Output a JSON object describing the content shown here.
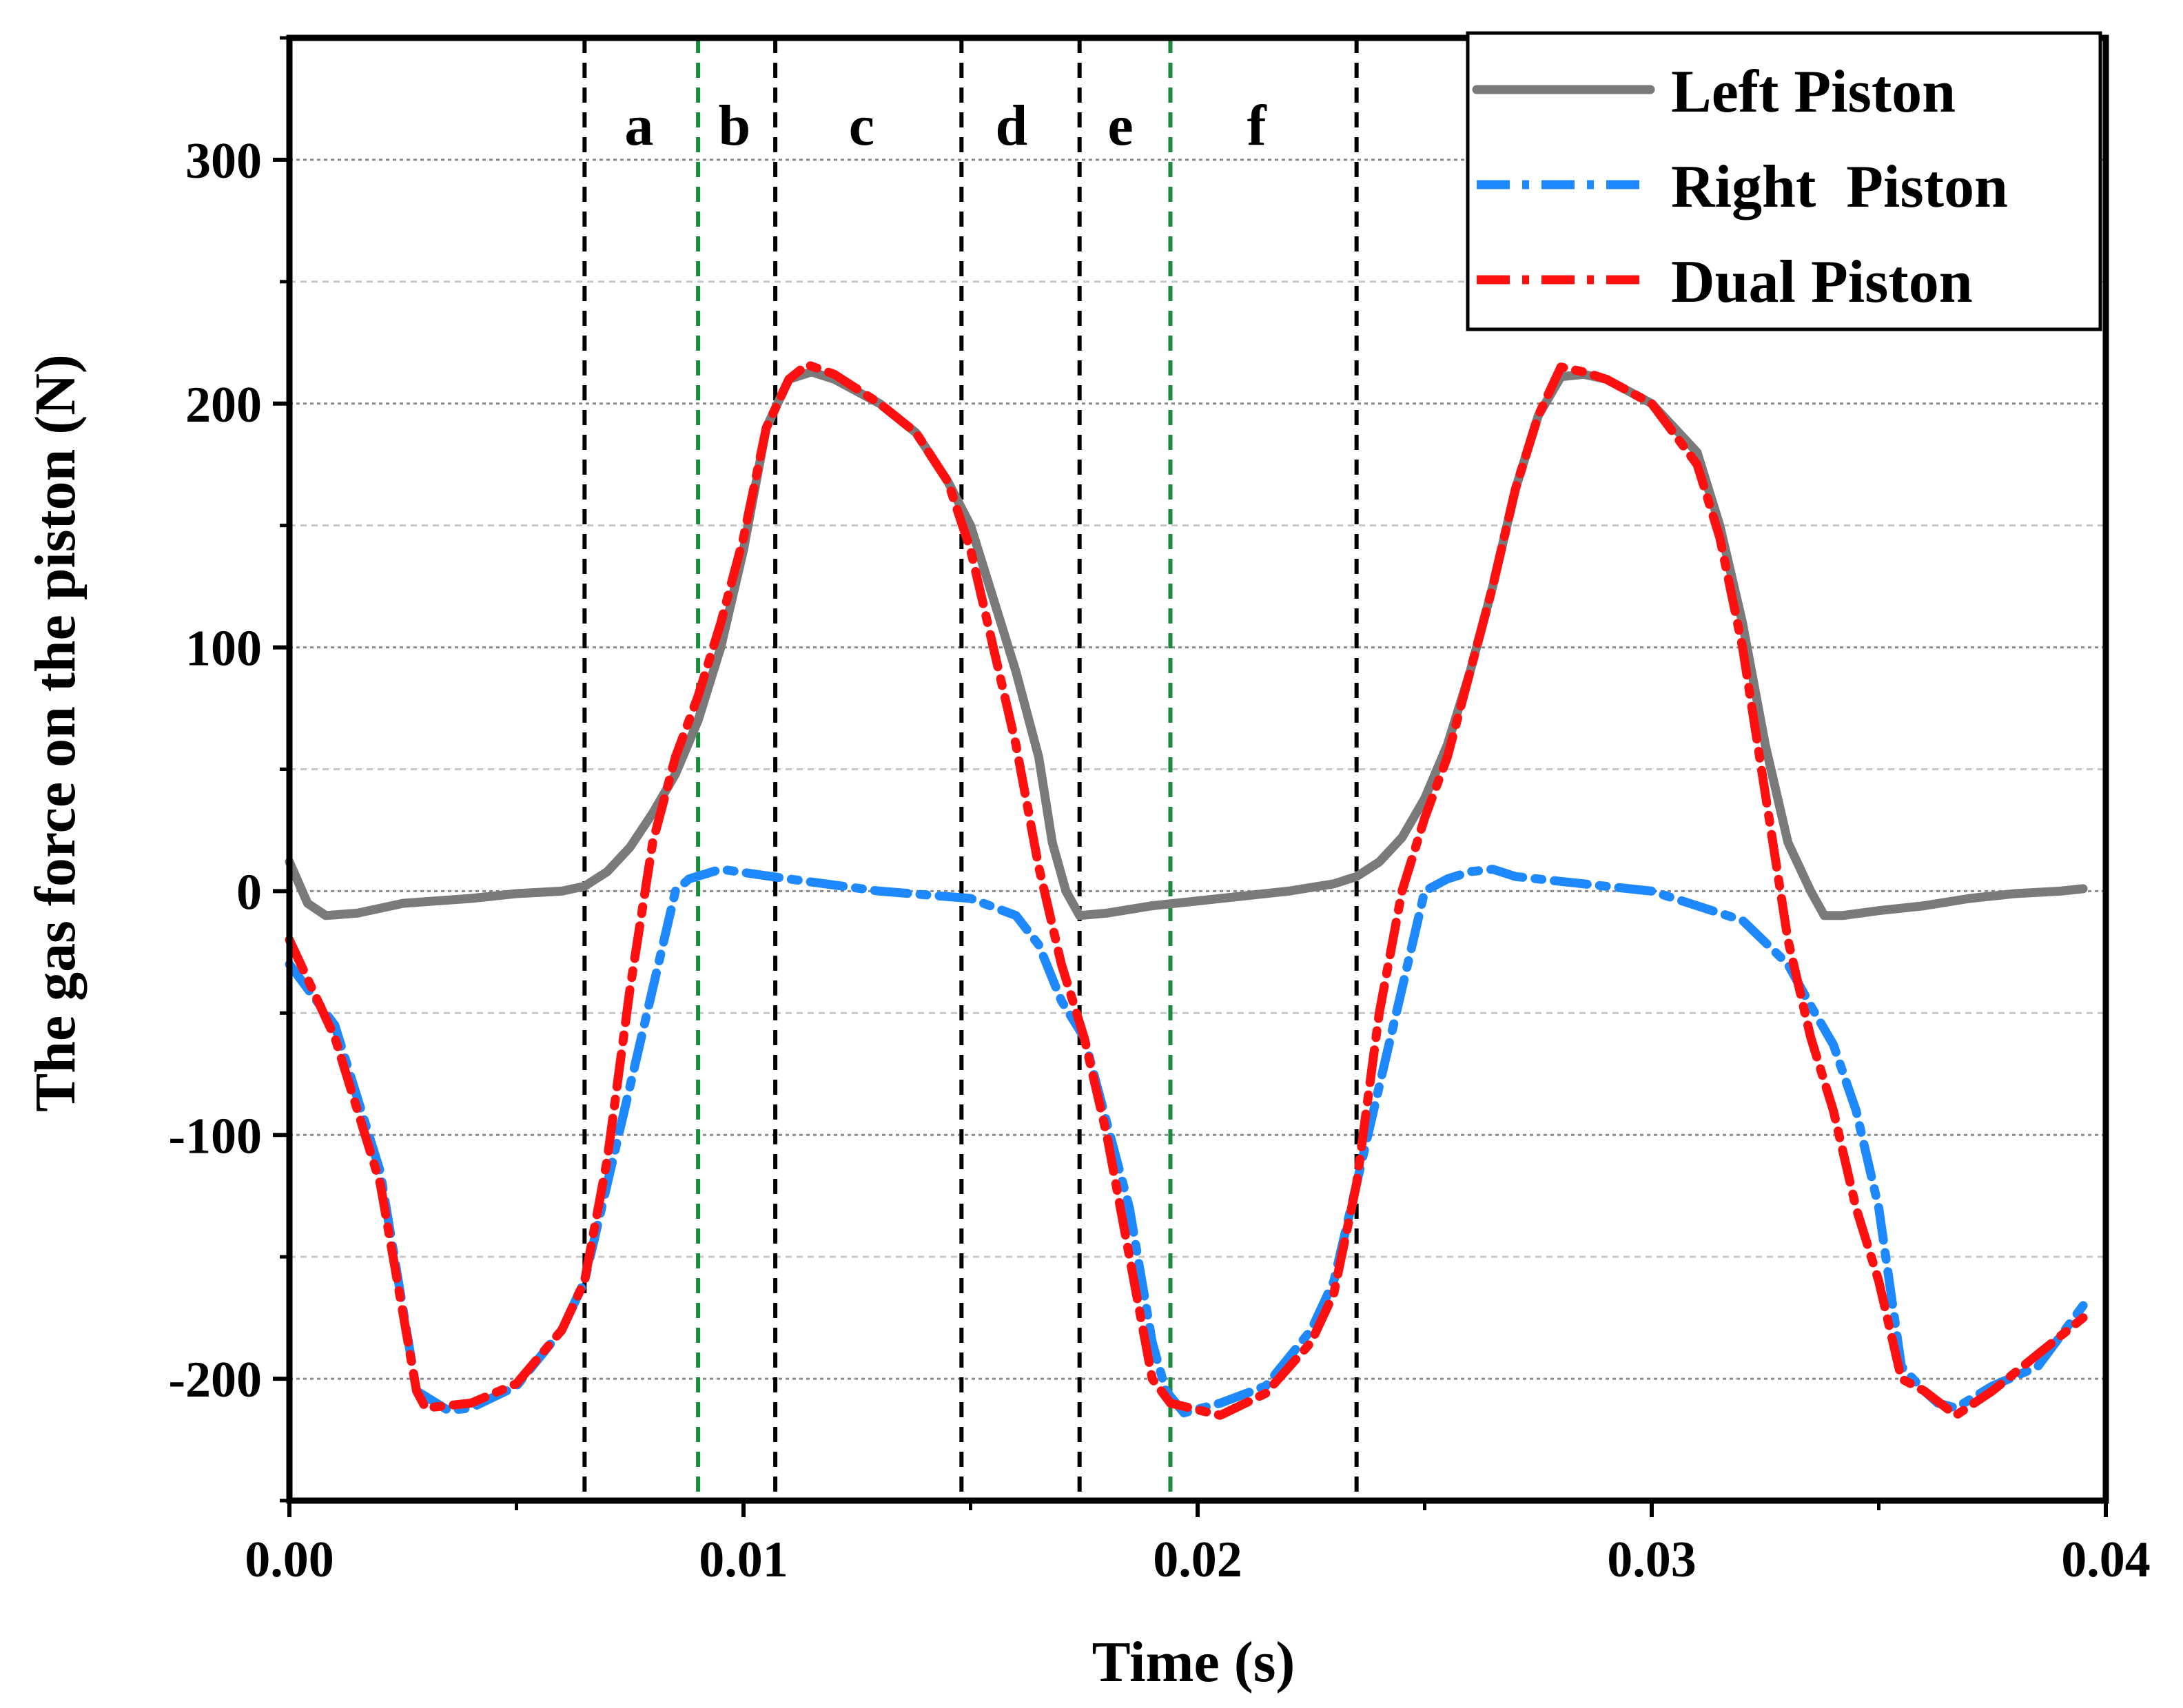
{
  "chart_data": {
    "type": "line",
    "title": "",
    "xlabel": "Time (s)",
    "ylabel": "The gas force on the piston (N)",
    "xlim": [
      0.0,
      0.04
    ],
    "ylim": [
      -250,
      350
    ],
    "grid": true,
    "xticks": [
      0.0,
      0.01,
      0.02,
      0.03,
      0.04
    ],
    "xtick_labels": [
      "0.00",
      "0.01",
      "0.02",
      "0.03",
      "0.04"
    ],
    "yticks": [
      -200,
      -100,
      0,
      100,
      200,
      300
    ],
    "ytick_labels": [
      "-200",
      "-100",
      "0",
      "100",
      "200",
      "300"
    ],
    "legend_position": "top-right",
    "colors": {
      "left": "#7a7a7a",
      "right": "#1e88ff",
      "dual": "#ff1010",
      "black_marker": "#000000",
      "green_marker": "#1a8a3c",
      "grid": "#8a8a8a"
    },
    "vertical_markers": [
      {
        "x": 0.0065,
        "color": "black"
      },
      {
        "x": 0.009,
        "color": "green"
      },
      {
        "x": 0.0107,
        "color": "black"
      },
      {
        "x": 0.0148,
        "color": "black"
      },
      {
        "x": 0.0174,
        "color": "black"
      },
      {
        "x": 0.0194,
        "color": "green"
      },
      {
        "x": 0.0235,
        "color": "black"
      }
    ],
    "region_labels": [
      {
        "label": "a",
        "x": 0.0077
      },
      {
        "label": "b",
        "x": 0.0098
      },
      {
        "label": "c",
        "x": 0.0126
      },
      {
        "label": "d",
        "x": 0.0159
      },
      {
        "label": "e",
        "x": 0.0183
      },
      {
        "label": "f",
        "x": 0.0213
      }
    ],
    "series": [
      {
        "name": "Left Piston",
        "style": "solid",
        "x": [
          0.0,
          0.0004,
          0.0008,
          0.0015,
          0.0025,
          0.004,
          0.005,
          0.006,
          0.0065,
          0.007,
          0.0075,
          0.008,
          0.0085,
          0.009,
          0.0095,
          0.01,
          0.0105,
          0.011,
          0.0115,
          0.012,
          0.013,
          0.0138,
          0.0145,
          0.015,
          0.0155,
          0.016,
          0.0165,
          0.0168,
          0.0171,
          0.0174,
          0.018,
          0.019,
          0.02,
          0.021,
          0.022,
          0.023,
          0.0235,
          0.024,
          0.0245,
          0.025,
          0.0255,
          0.026,
          0.0265,
          0.027,
          0.0275,
          0.028,
          0.0285,
          0.029,
          0.03,
          0.031,
          0.0315,
          0.032,
          0.0325,
          0.033,
          0.0335,
          0.0338,
          0.0342,
          0.035,
          0.036,
          0.037,
          0.038,
          0.039,
          0.0395
        ],
        "y": [
          12,
          -5,
          -10,
          -9,
          -5,
          -3,
          -1,
          0,
          2,
          8,
          18,
          32,
          48,
          70,
          100,
          140,
          190,
          210,
          213,
          210,
          200,
          188,
          168,
          150,
          120,
          90,
          55,
          20,
          0,
          -10,
          -9,
          -6,
          -4,
          -2,
          0,
          3,
          6,
          12,
          22,
          38,
          60,
          90,
          125,
          165,
          195,
          211,
          212,
          210,
          200,
          180,
          150,
          110,
          60,
          20,
          0,
          -10,
          -10,
          -8,
          -6,
          -3,
          -1,
          0,
          1
        ]
      },
      {
        "name": "Right  Piston",
        "style": "dashdot",
        "x": [
          0.0,
          0.001,
          0.002,
          0.0028,
          0.0035,
          0.004,
          0.005,
          0.006,
          0.0065,
          0.007,
          0.0075,
          0.008,
          0.0085,
          0.0088,
          0.0095,
          0.011,
          0.013,
          0.015,
          0.016,
          0.0165,
          0.017,
          0.0175,
          0.018,
          0.0185,
          0.019,
          0.0193,
          0.0197,
          0.0205,
          0.0215,
          0.0225,
          0.023,
          0.0235,
          0.024,
          0.0245,
          0.025,
          0.0255,
          0.026,
          0.0265,
          0.027,
          0.028,
          0.03,
          0.032,
          0.033,
          0.0335,
          0.034,
          0.0345,
          0.035,
          0.0355,
          0.036,
          0.0363,
          0.0367,
          0.0375,
          0.0385,
          0.0395
        ],
        "y": [
          -30,
          -55,
          -115,
          -205,
          -213,
          -212,
          -203,
          -180,
          -160,
          -120,
          -80,
          -40,
          0,
          5,
          9,
          5,
          0,
          -3,
          -10,
          -22,
          -45,
          -60,
          -95,
          -130,
          -185,
          -205,
          -214,
          -210,
          -203,
          -180,
          -160,
          -120,
          -80,
          -40,
          0,
          5,
          8,
          9,
          6,
          4,
          0,
          -12,
          -30,
          -47,
          -63,
          -90,
          -130,
          -195,
          -205,
          -210,
          -212,
          -203,
          -195,
          -170
        ]
      },
      {
        "name": "Dual Piston",
        "style": "dashdot",
        "x": [
          0.0,
          0.001,
          0.002,
          0.0028,
          0.003,
          0.004,
          0.005,
          0.006,
          0.0065,
          0.007,
          0.0075,
          0.008,
          0.0085,
          0.009,
          0.0095,
          0.01,
          0.0105,
          0.011,
          0.0114,
          0.012,
          0.013,
          0.0138,
          0.0145,
          0.015,
          0.0155,
          0.016,
          0.0165,
          0.017,
          0.0175,
          0.018,
          0.0185,
          0.019,
          0.0194,
          0.0205,
          0.0215,
          0.0225,
          0.023,
          0.0235,
          0.024,
          0.0245,
          0.025,
          0.0255,
          0.026,
          0.0265,
          0.027,
          0.0275,
          0.028,
          0.0285,
          0.029,
          0.03,
          0.031,
          0.0315,
          0.032,
          0.0325,
          0.033,
          0.0335,
          0.034,
          0.0345,
          0.035,
          0.0355,
          0.036,
          0.0367,
          0.0375,
          0.0385,
          0.0395
        ],
        "y": [
          -20,
          -60,
          -120,
          -205,
          -212,
          -210,
          -202,
          -180,
          -160,
          -110,
          -40,
          20,
          55,
          80,
          110,
          145,
          190,
          210,
          216,
          212,
          200,
          188,
          168,
          140,
          100,
          60,
          10,
          -30,
          -60,
          -100,
          -150,
          -200,
          -210,
          -215,
          -206,
          -185,
          -165,
          -120,
          -50,
          0,
          30,
          55,
          90,
          125,
          165,
          195,
          215,
          213,
          210,
          200,
          175,
          145,
          100,
          40,
          -20,
          -60,
          -90,
          -130,
          -160,
          -200,
          -205,
          -215,
          -205,
          -190,
          -175
        ]
      }
    ]
  }
}
